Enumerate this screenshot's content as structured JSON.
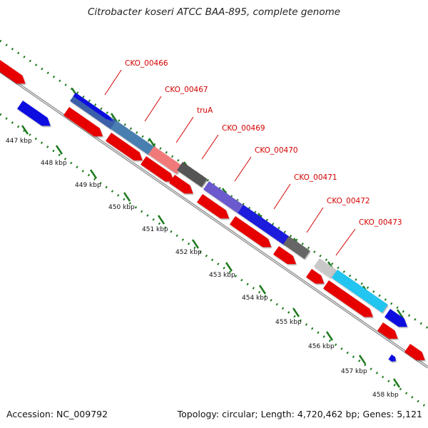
{
  "title": "Citrobacter koseri ATCC BAA-895, complete genome",
  "footer": {
    "accession": "Accession: NC_009792",
    "topology": "Topology: circular; Length: 4,720,462 bp; Genes: 5,121"
  },
  "ticks": [
    "447 kbp",
    "448 kbp",
    "449 kbp",
    "450 kbp",
    "451 kbp",
    "452 kbp",
    "453 kbp",
    "454 kbp",
    "455 kbp",
    "456 kbp",
    "457 kbp",
    "458 kbp"
  ],
  "gene_labels": [
    "CKO_00466",
    "CKO_00467",
    "truA",
    "CKO_00469",
    "CKO_00470",
    "CKO_00471",
    "CKO_00472",
    "CKO_00473"
  ],
  "colors": {
    "backbone": "#8a8a8a",
    "tick": "#1f7a1f",
    "label": "#d40000",
    "cds_red": "#e60000",
    "cds_blue": "#1010e0",
    "CKO_00466": "#3a5fa8",
    "CKO_00467": "#4a7fb0",
    "truA": "#f07a7a",
    "CKO_00469": "#555555",
    "CKO_00470": "#6a5acd",
    "CKO_00471": "#1a1adc",
    "CKO_00472": "#666666",
    "CKO_00473": "#22c4f0",
    "light_grey": "#c8c8c8"
  }
}
